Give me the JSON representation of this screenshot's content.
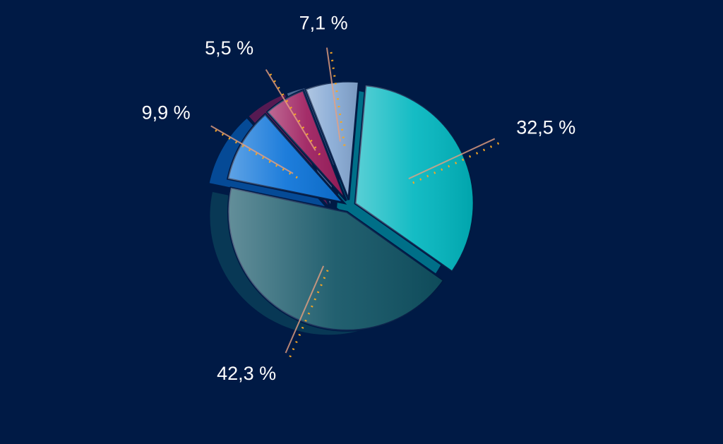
{
  "chart_data": {
    "type": "pie",
    "values": [
      32.5,
      42.3,
      9.9,
      5.5,
      7.1
    ],
    "value_labels": [
      "32,5 %",
      "42,3 %",
      "9,9 %",
      "5,5 %",
      "7,1 %"
    ],
    "colors": [
      "#00b6bf",
      "#0f5263",
      "#0a72d8",
      "#9c1b5c",
      "#86a9d4"
    ]
  }
}
